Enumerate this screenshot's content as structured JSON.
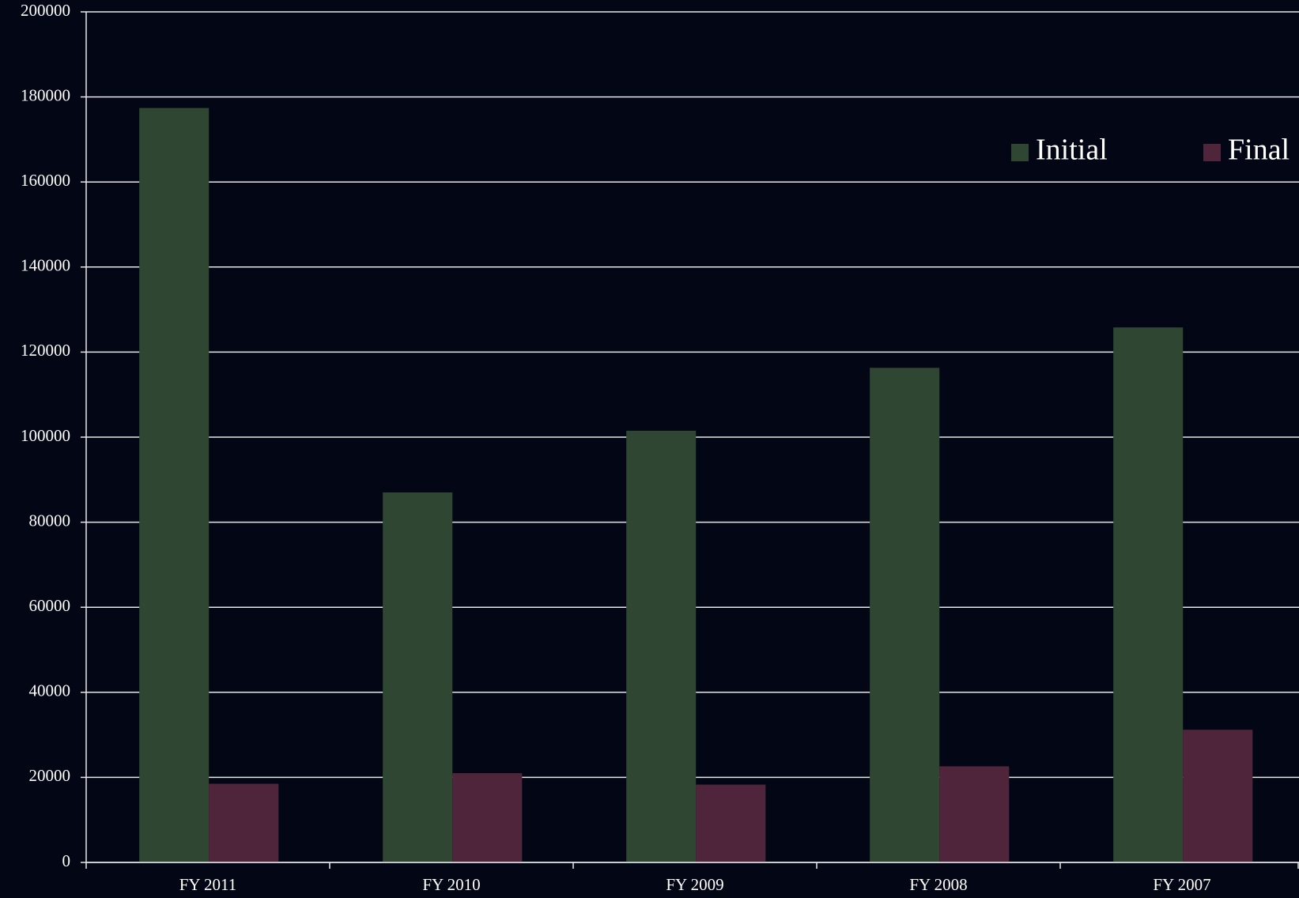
{
  "chart_data": {
    "type": "bar",
    "categories": [
      "FY 2011",
      "FY 2010",
      "FY 2009",
      "FY 2008",
      "FY 2007"
    ],
    "series": [
      {
        "name": "Initial",
        "color": "#2f4633",
        "values": [
          177400,
          87000,
          101500,
          116300,
          125800
        ]
      },
      {
        "name": "Final",
        "color": "#4f253b",
        "values": [
          18500,
          21000,
          18300,
          22600,
          31200
        ]
      }
    ],
    "ylim": [
      0,
      200000
    ],
    "yticks": [
      0,
      20000,
      40000,
      60000,
      80000,
      100000,
      120000,
      140000,
      160000,
      180000,
      200000
    ],
    "grid": true,
    "legend": "top-right"
  }
}
